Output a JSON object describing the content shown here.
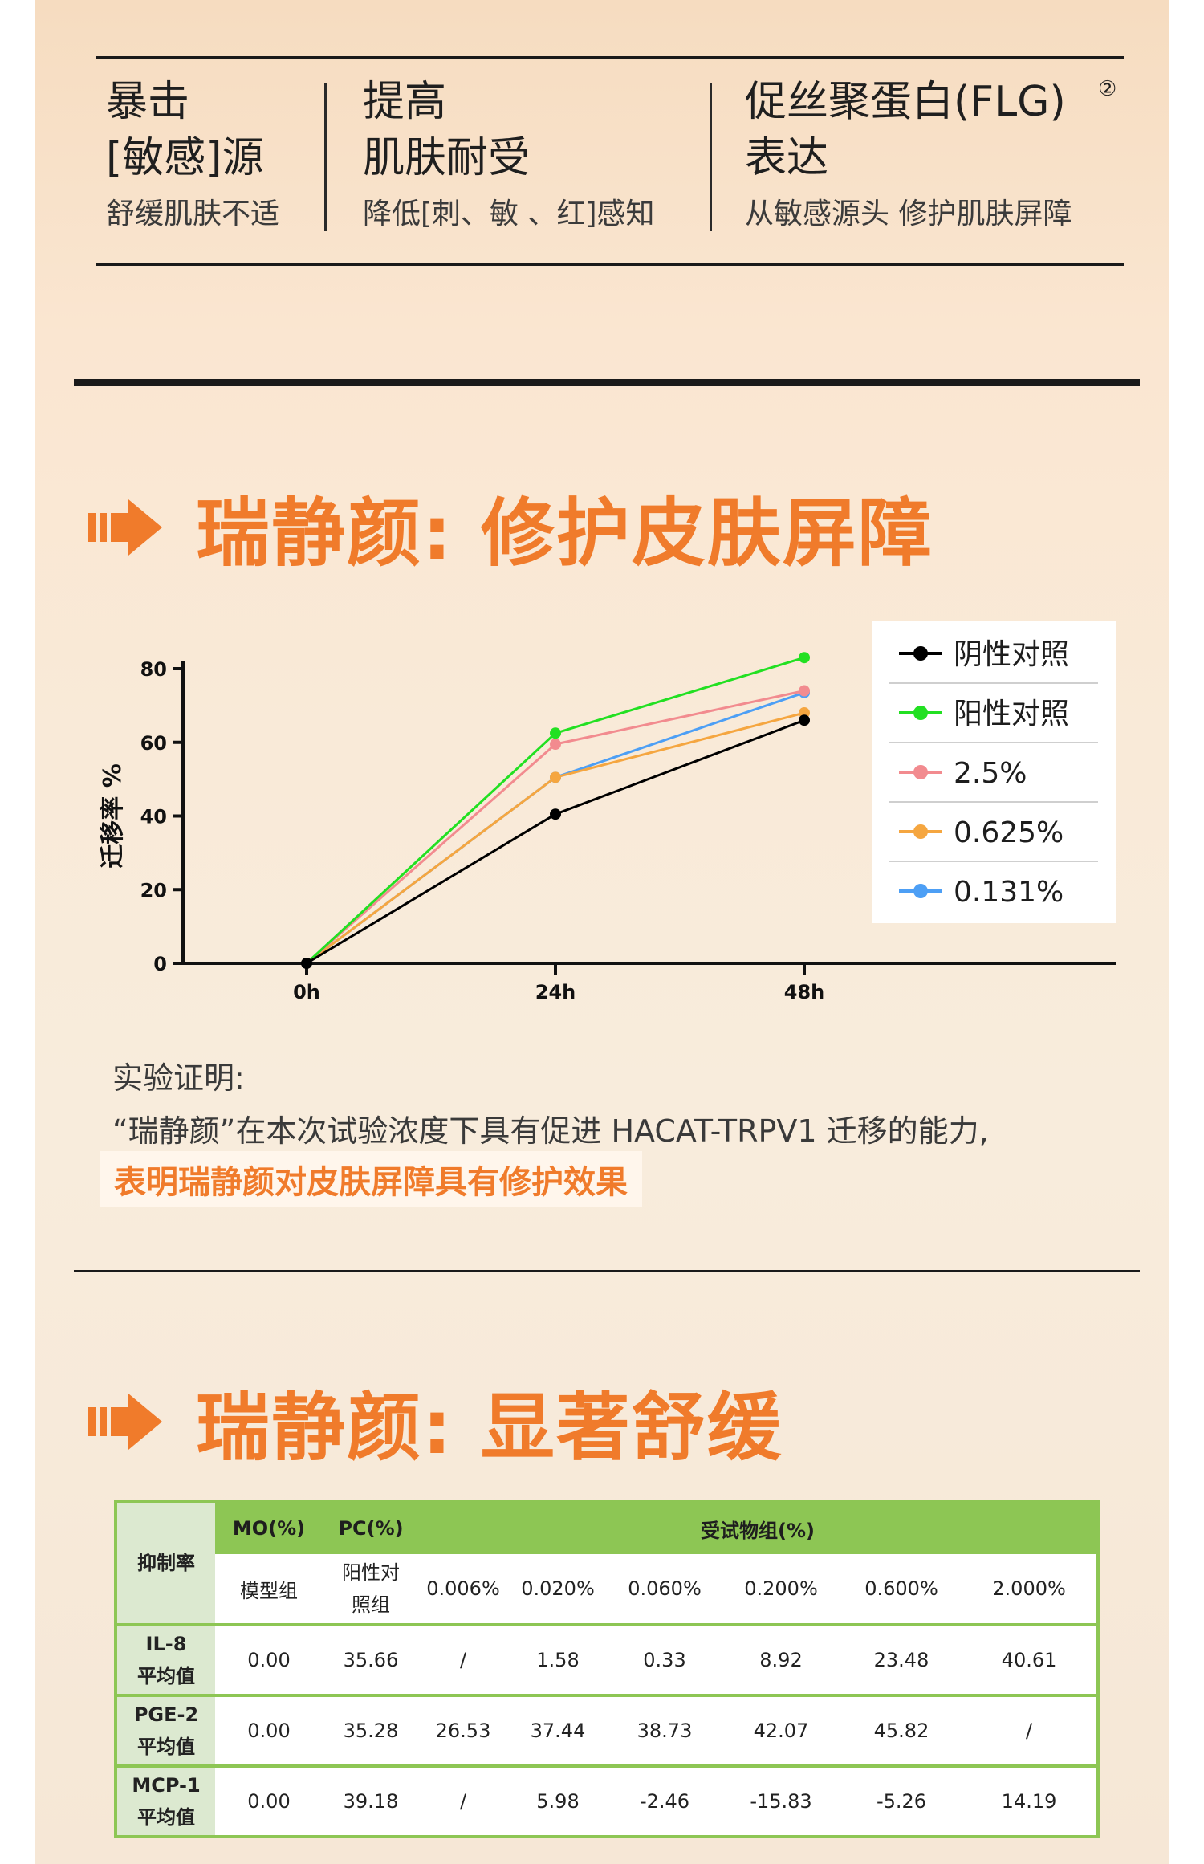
{
  "features": [
    {
      "title": "暴击\n[敏感]源",
      "sub": "舒缓肌肤不适"
    },
    {
      "title": "提高\n肌肤耐受",
      "sub": "降低[刺、敏 、红]感知"
    },
    {
      "title": "促丝聚蛋白(FLG)\n表达",
      "title_mark": "②",
      "sub": "从敏感源头 修护肌肤屏障"
    }
  ],
  "section1_title": "瑞静颜: 修护皮肤屏障",
  "section2_title": "瑞静颜: 显著舒缓",
  "colors": {
    "accent": "#f07b2b",
    "table_green": "#8dc654"
  },
  "chart_data": {
    "type": "line",
    "x": [
      "0h",
      "24h",
      "48h"
    ],
    "ylabel": "迁移率 %",
    "ylim": [
      0,
      80
    ],
    "yticks": [
      "0",
      "20",
      "40",
      "60",
      "80"
    ],
    "legend_position": "right",
    "series": [
      {
        "name": "阴性对照",
        "color": "#000000",
        "values": [
          0,
          40.5,
          66
        ]
      },
      {
        "name": "阳性对照",
        "color": "#22e022",
        "values": [
          0,
          62.5,
          83
        ]
      },
      {
        "name": "2.5%",
        "color": "#f28b8f",
        "values": [
          0,
          59.5,
          74
        ]
      },
      {
        "name": "0.625%",
        "color": "#f5a640",
        "values": [
          0,
          50.5,
          68
        ]
      },
      {
        "name": "0.131%",
        "color": "#4d9ff5",
        "values": [
          0,
          50.5,
          73.5
        ]
      }
    ]
  },
  "evidence": {
    "heading": "实验证明:",
    "body": "“瑞静颜”在本次试验浓度下具有促进 HACAT-TRPV1 迁移的能力,",
    "highlight": "表明瑞静颜对皮肤屏障具有修护效果"
  },
  "table": {
    "corner": "抑制率",
    "mo": "MO(%)",
    "pc": "PC(%)",
    "group": "受试物组(%)",
    "mo_sub": "模型组",
    "pc_sub_1": "阳性对",
    "pc_sub_2": "照组",
    "concentrations": [
      "0.006%",
      "0.020%",
      "0.060%",
      "0.200%",
      "0.600%",
      "2.000%"
    ],
    "rows": [
      {
        "name": "IL-8",
        "sub": "平均值",
        "values": [
          "0.00",
          "35.66",
          "/",
          "1.58",
          "0.33",
          "8.92",
          "23.48",
          "40.61"
        ]
      },
      {
        "name": "PGE-2",
        "sub": "平均值",
        "values": [
          "0.00",
          "35.28",
          "26.53",
          "37.44",
          "38.73",
          "42.07",
          "45.82",
          "/"
        ]
      },
      {
        "name": "MCP-1",
        "sub": "平均值",
        "values": [
          "0.00",
          "39.18",
          "/",
          "5.98",
          "-2.46",
          "-15.83",
          "-5.26",
          "14.19"
        ]
      }
    ]
  }
}
